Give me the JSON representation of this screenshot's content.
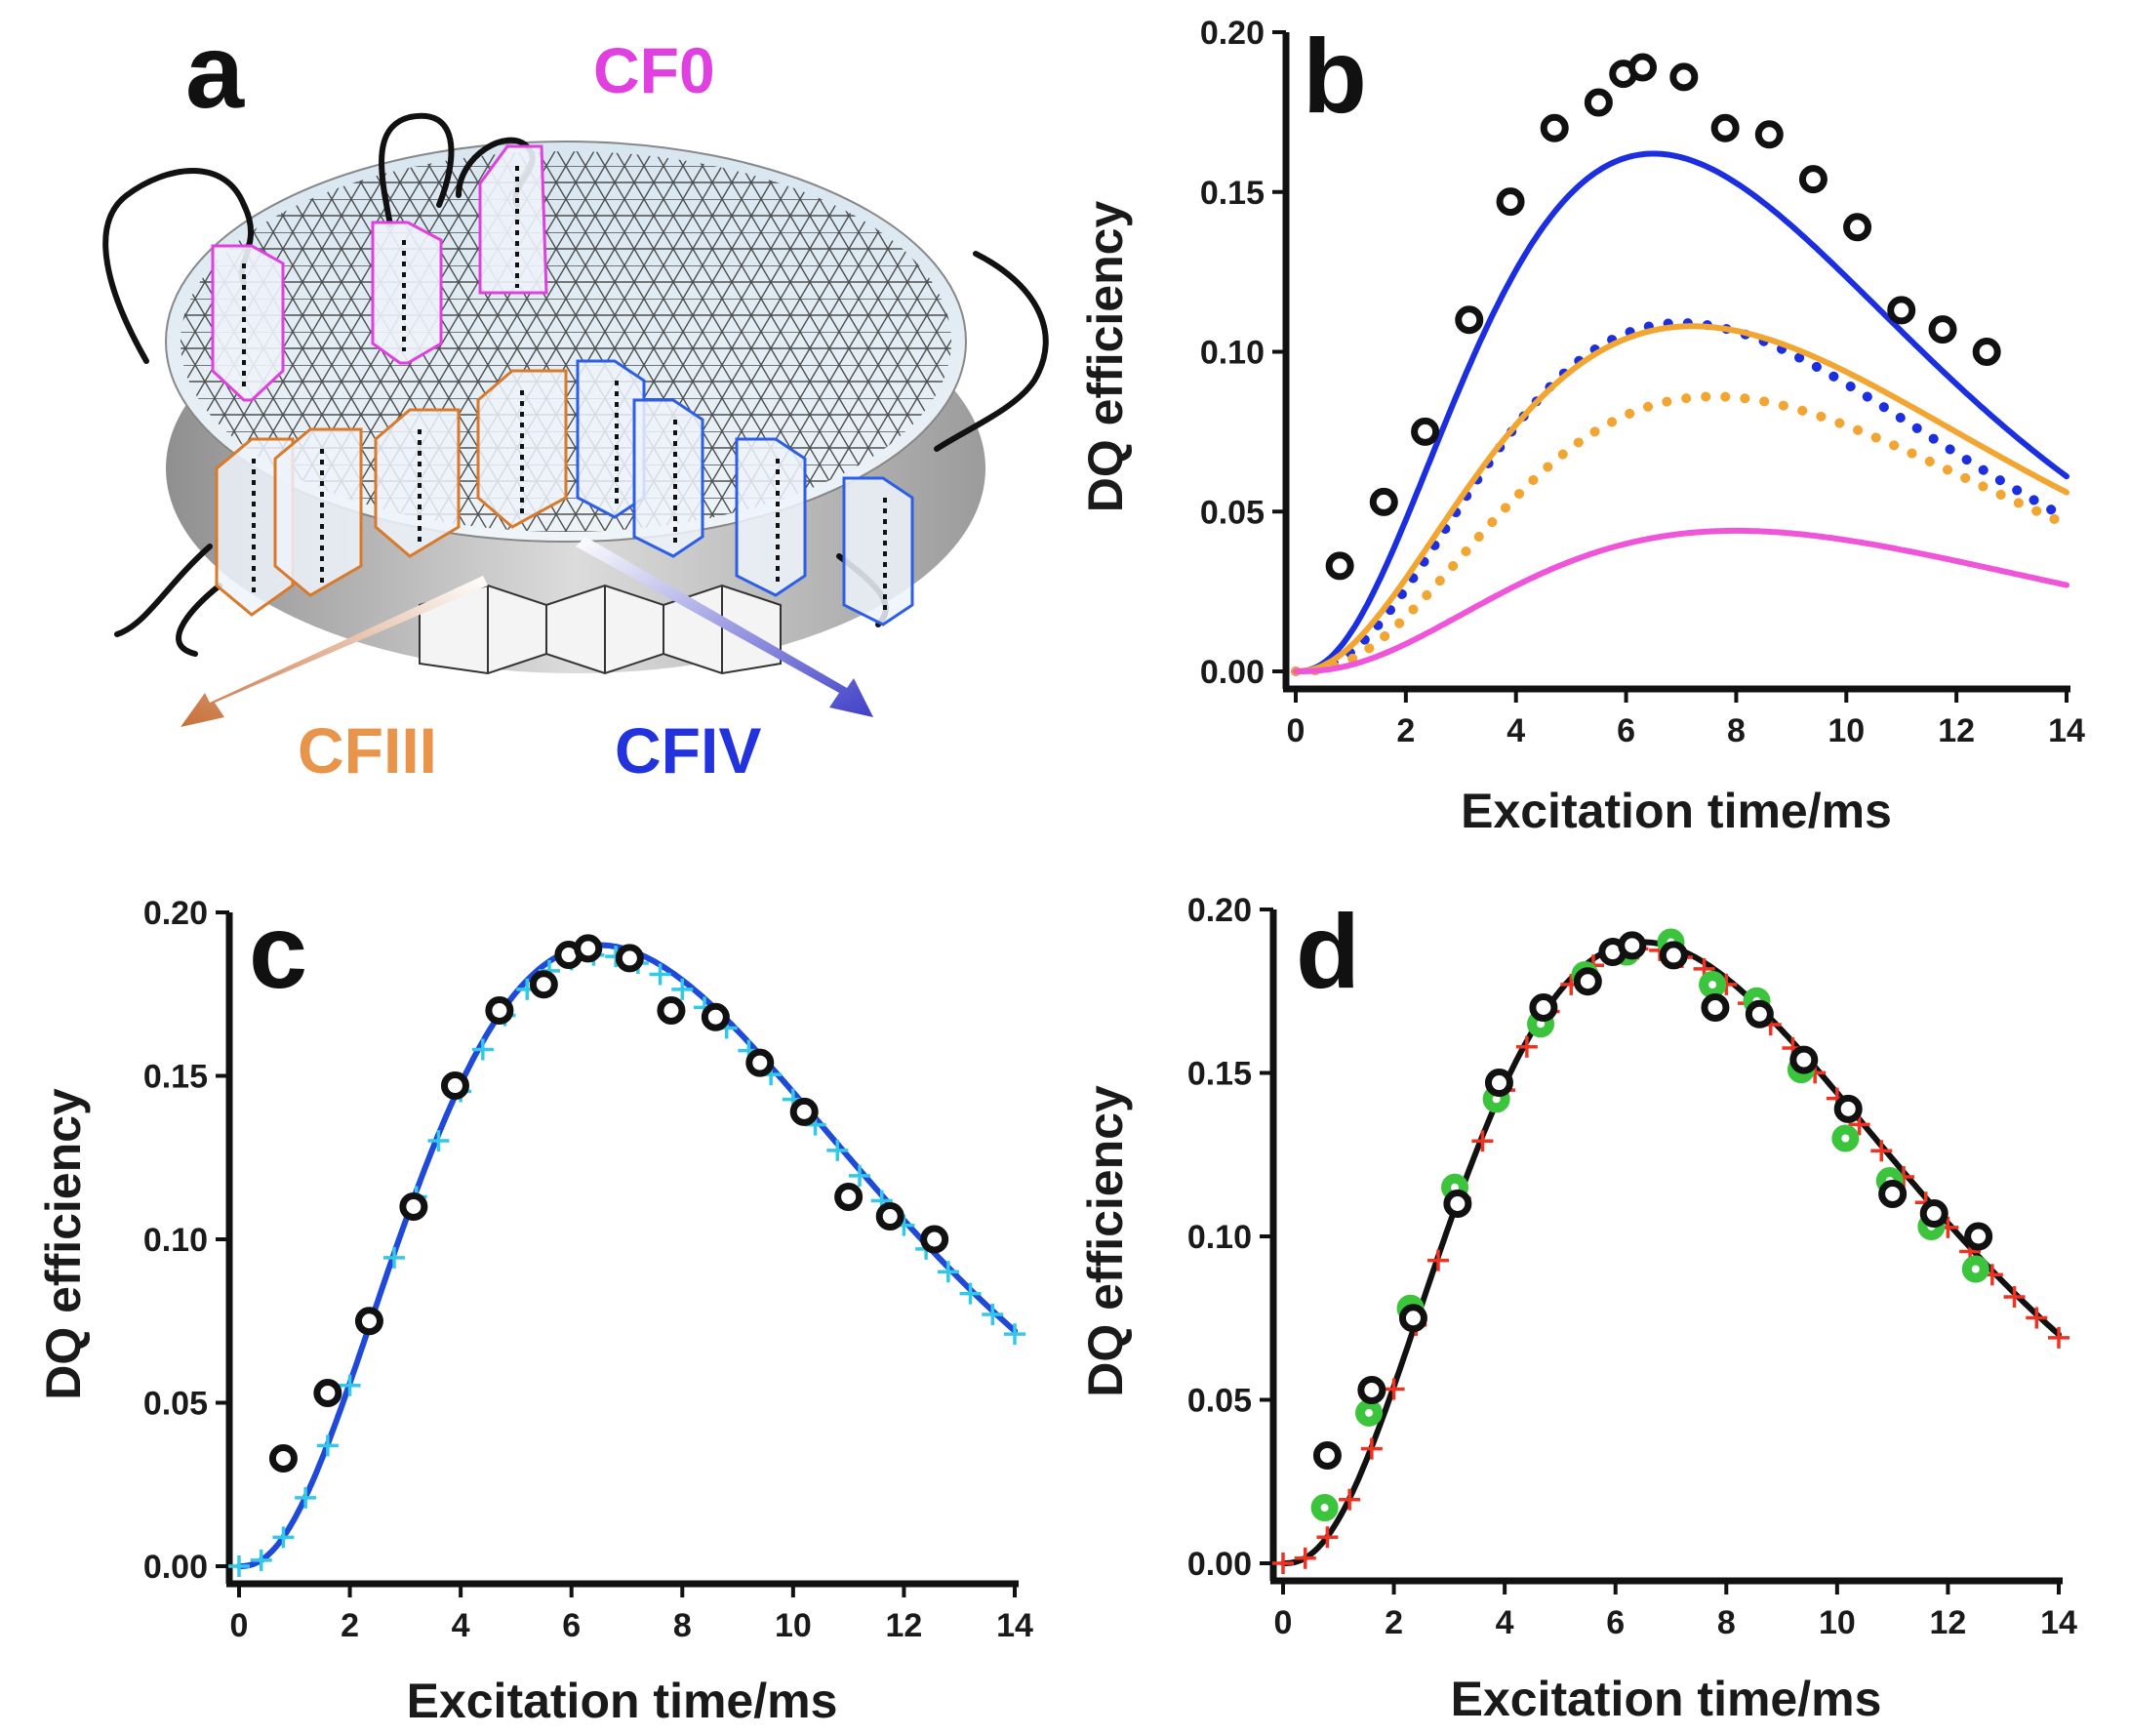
{
  "figure": {
    "panel_a": {
      "letter": "a",
      "labels": {
        "cf0": "CF0",
        "cfiii": "CFIII",
        "cfiv": "CFIV"
      },
      "colors": {
        "cf0": "#e040e0",
        "cfiii": "#e8944a",
        "cfiv": "#2233dd"
      }
    },
    "panel_letters": {
      "b": "b",
      "c": "c",
      "d": "d"
    }
  },
  "chart_data": [
    {
      "panel": "b",
      "type": "line",
      "xlabel": "Excitation time/ms",
      "ylabel": "DQ efficiency",
      "xlim": [
        0,
        14
      ],
      "ylim": [
        0,
        0.2
      ],
      "xticks": [
        "0",
        "2",
        "4",
        "6",
        "8",
        "10",
        "12",
        "14"
      ],
      "yticks": [
        "0.00",
        "0.05",
        "0.10",
        "0.15",
        "0.20"
      ],
      "experimental": {
        "style": "open-circle",
        "color": "#111111",
        "x": [
          0.8,
          1.6,
          2.35,
          3.15,
          3.9,
          4.7,
          5.5,
          5.95,
          6.3,
          7.05,
          7.8,
          8.6,
          9.4,
          10.2,
          11.0,
          11.75,
          12.55
        ],
        "y": [
          0.033,
          0.053,
          0.075,
          0.11,
          0.147,
          0.17,
          0.178,
          0.187,
          0.189,
          0.186,
          0.17,
          0.168,
          0.154,
          0.139,
          0.113,
          0.107,
          0.1
        ]
      },
      "series": [
        {
          "name": "CFIV solid",
          "color": "#1c2fe0",
          "style": "solid",
          "peak_x": 6.5,
          "peak_y": 0.162,
          "end_y": 0.061
        },
        {
          "name": "CFIV dotted",
          "color": "#1c2fe0",
          "style": "dotted",
          "peak_x": 7.0,
          "peak_y": 0.109,
          "end_y": 0.048
        },
        {
          "name": "CFIII solid",
          "color": "#f2a531",
          "style": "solid",
          "peak_x": 7.2,
          "peak_y": 0.108,
          "end_y": 0.056
        },
        {
          "name": "CFIII dotted",
          "color": "#f2a531",
          "style": "dotted",
          "peak_x": 7.6,
          "peak_y": 0.086,
          "end_y": 0.046
        },
        {
          "name": "CF0 solid",
          "color": "#ee55d8",
          "style": "solid",
          "peak_x": 8.0,
          "peak_y": 0.044,
          "end_y": 0.027
        }
      ]
    },
    {
      "panel": "c",
      "type": "line",
      "xlabel": "Excitation time/ms",
      "ylabel": "DQ efficiency",
      "xlim": [
        0,
        14
      ],
      "ylim": [
        0,
        0.2
      ],
      "xticks": [
        "0",
        "2",
        "4",
        "6",
        "8",
        "10",
        "12",
        "14"
      ],
      "yticks": [
        "0.00",
        "0.05",
        "0.10",
        "0.15",
        "0.20"
      ],
      "experimental": {
        "style": "open-circle",
        "color": "#111111",
        "x": [
          0.8,
          1.6,
          2.35,
          3.15,
          3.9,
          4.7,
          5.5,
          5.95,
          6.3,
          7.05,
          7.8,
          8.6,
          9.4,
          10.2,
          11.0,
          11.75,
          12.55
        ],
        "y": [
          0.033,
          0.053,
          0.075,
          0.11,
          0.147,
          0.17,
          0.178,
          0.187,
          0.189,
          0.186,
          0.17,
          0.168,
          0.154,
          0.139,
          0.113,
          0.107,
          0.1
        ]
      },
      "series": [
        {
          "name": "simulation",
          "color": "#1f49d8",
          "style": "solid",
          "peak_x": 6.5,
          "peak_y": 0.19,
          "end_y": 0.072
        },
        {
          "name": "simulation points",
          "color": "#33c8e8",
          "style": "cross",
          "peak_x": 6.5,
          "peak_y": 0.187,
          "end_y": 0.071
        }
      ]
    },
    {
      "panel": "d",
      "type": "line",
      "xlabel": "Excitation time/ms",
      "ylabel": "DQ efficiency",
      "xlim": [
        0,
        14
      ],
      "ylim": [
        0,
        0.2
      ],
      "xticks": [
        "0",
        "2",
        "4",
        "6",
        "8",
        "10",
        "12",
        "14"
      ],
      "yticks": [
        "0.00",
        "0.05",
        "0.10",
        "0.15",
        "0.20"
      ],
      "experimental": {
        "style": "open-circle",
        "color": "#111111",
        "x": [
          0.8,
          1.6,
          2.35,
          3.15,
          3.9,
          4.7,
          5.5,
          5.95,
          6.3,
          7.05,
          7.8,
          8.6,
          9.4,
          10.2,
          11.0,
          11.75,
          12.55
        ],
        "y": [
          0.033,
          0.053,
          0.075,
          0.11,
          0.147,
          0.17,
          0.178,
          0.187,
          0.189,
          0.186,
          0.17,
          0.168,
          0.154,
          0.139,
          0.113,
          0.107,
          0.1
        ]
      },
      "experimental2": {
        "style": "filled-circle",
        "color": "#3cc43c",
        "x": [
          0.75,
          1.55,
          2.3,
          3.1,
          3.85,
          4.65,
          5.45,
          6.2,
          7.0,
          7.75,
          8.55,
          9.35,
          10.15,
          10.95,
          11.7,
          12.5
        ],
        "y": [
          0.017,
          0.046,
          0.078,
          0.115,
          0.142,
          0.165,
          0.18,
          0.187,
          0.19,
          0.177,
          0.172,
          0.151,
          0.13,
          0.117,
          0.103,
          0.09
        ]
      },
      "series": [
        {
          "name": "simulation",
          "color": "#111111",
          "style": "solid",
          "peak_x": 6.5,
          "peak_y": 0.19,
          "end_y": 0.07
        },
        {
          "name": "simulation points",
          "color": "#ee3322",
          "style": "cross",
          "peak_x": 6.5,
          "peak_y": 0.188,
          "end_y": 0.069
        }
      ]
    }
  ]
}
